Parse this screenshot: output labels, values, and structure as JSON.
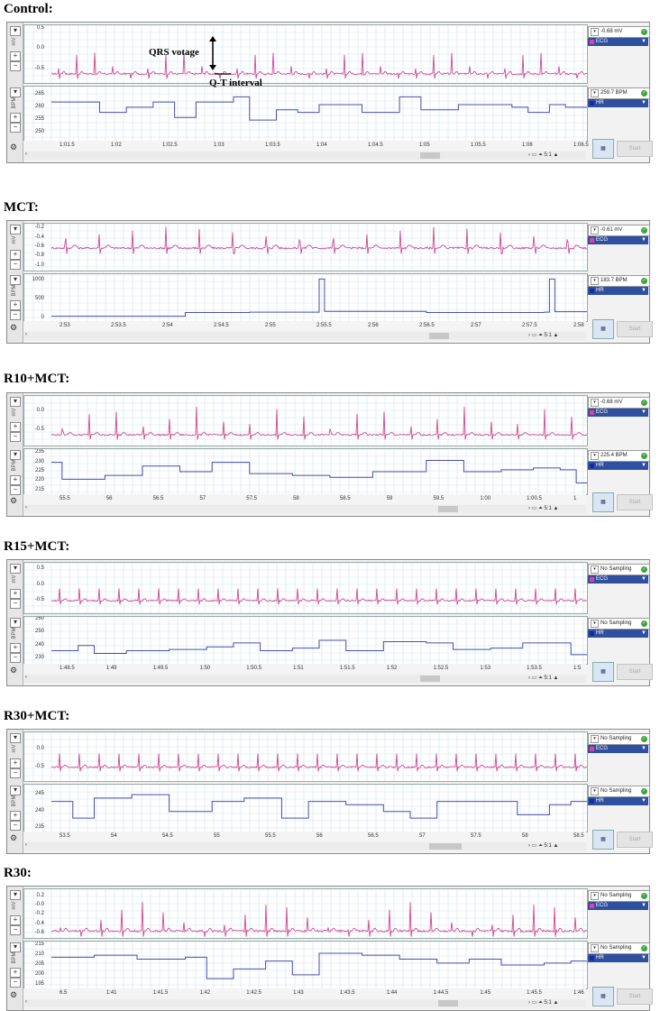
{
  "panels": [
    {
      "label": "Control:",
      "ecg": {
        "yticks": [
          "0.5",
          "0.0",
          "-0.5"
        ],
        "unit": "mV",
        "readout": "-0.68 mV",
        "channel": "ECG",
        "range": [
          -0.85,
          0.6
        ],
        "baseline": -0.62,
        "peak": 0.05,
        "beats": 30
      },
      "hr": {
        "yticks": [
          "265",
          "260",
          "255",
          "250"
        ],
        "unit": "BPM",
        "readout": "259.7 BPM",
        "channel": "HR",
        "range": [
          247,
          268
        ],
        "steps": [
          [
            0,
            262
          ],
          [
            0.09,
            258
          ],
          [
            0.14,
            260
          ],
          [
            0.19,
            262
          ],
          [
            0.23,
            256
          ],
          [
            0.27,
            262
          ],
          [
            0.34,
            264
          ],
          [
            0.37,
            255
          ],
          [
            0.42,
            259
          ],
          [
            0.46,
            258
          ],
          [
            0.5,
            261
          ],
          [
            0.55,
            261
          ],
          [
            0.58,
            258
          ],
          [
            0.65,
            264
          ],
          [
            0.69,
            259
          ],
          [
            0.76,
            261
          ],
          [
            0.86,
            260
          ],
          [
            0.89,
            258
          ],
          [
            0.93,
            261
          ],
          [
            0.96,
            260
          ]
        ]
      },
      "xticks": [
        "1:01.5",
        "1:02",
        "1:02.5",
        "1:03",
        "1:03.5",
        "1:04",
        "1:04.5",
        "1:05",
        "1:05.5",
        "1:06",
        "1:06.5"
      ],
      "zoom": "5:1",
      "button": "Start"
    },
    {
      "label": "MCT:",
      "ecg": {
        "yticks": [
          "-0.2",
          "-0.4",
          "-0.6",
          "-0.8",
          "-1.0"
        ],
        "unit": "mV",
        "readout": "-0.61 mV",
        "channel": "ECG",
        "range": [
          -1.1,
          -0.1
        ],
        "baseline": -0.62,
        "peak": -0.15,
        "beats": 16
      },
      "hr": {
        "yticks": [
          "1000",
          "500",
          "0"
        ],
        "unit": "BPM",
        "readout": "183.7 BPM",
        "channel": "HR",
        "range": [
          -80,
          1180
        ],
        "steps": [
          [
            0,
            50
          ],
          [
            0.25,
            150
          ],
          [
            0.37,
            160
          ],
          [
            0.5,
            1050
          ],
          [
            0.51,
            180
          ],
          [
            0.7,
            150
          ],
          [
            0.92,
            160
          ],
          [
            0.93,
            1050
          ],
          [
            0.94,
            170
          ],
          [
            1,
            170
          ]
        ]
      },
      "xticks": [
        "2:53",
        "2:53.5",
        "2:54",
        "2:54.5",
        "2:55",
        "2:55.5",
        "2:56",
        "2:56.5",
        "2:57",
        "2:57.5",
        "2:58"
      ],
      "zoom": "5:1",
      "button": "Start"
    },
    {
      "label": "R10+MCT:",
      "ecg": {
        "yticks": [
          "0.0",
          "-0.5"
        ],
        "unit": "mV",
        "readout": "-0.68 mV",
        "channel": "ECG",
        "range": [
          -0.9,
          0.4
        ],
        "baseline": -0.62,
        "peak": 0.15,
        "beats": 20
      },
      "hr": {
        "yticks": [
          "235",
          "230",
          "225",
          "220",
          "215"
        ],
        "unit": "BPM",
        "readout": "225.4 BPM",
        "channel": "HR",
        "range": [
          213,
          237
        ],
        "steps": [
          [
            0,
            230
          ],
          [
            0.02,
            221
          ],
          [
            0.1,
            223
          ],
          [
            0.17,
            228
          ],
          [
            0.24,
            225
          ],
          [
            0.3,
            230
          ],
          [
            0.37,
            224
          ],
          [
            0.45,
            223
          ],
          [
            0.52,
            222
          ],
          [
            0.6,
            225
          ],
          [
            0.7,
            231
          ],
          [
            0.77,
            225
          ],
          [
            0.84,
            226
          ],
          [
            0.9,
            227
          ],
          [
            0.95,
            226
          ],
          [
            0.98,
            219
          ]
        ]
      },
      "xticks": [
        "55.5",
        "56",
        "56.5",
        "57",
        "57.5",
        "58",
        "58.5",
        "59",
        "59.5",
        "1:00",
        "1:00.5",
        "1"
      ],
      "zoom": "5:1",
      "button": "Start"
    },
    {
      "label": "R15+MCT:",
      "ecg": {
        "yticks": [
          "0.5",
          "0.0",
          "-0.5"
        ],
        "unit": "mV",
        "readout": "No Sampling",
        "channel": "ECG",
        "range": [
          -0.9,
          0.7
        ],
        "baseline": -0.5,
        "peak": 0.35,
        "beats": 27
      },
      "hr": {
        "yticks": [
          "260",
          "250",
          "240",
          "230"
        ],
        "unit": "BPM",
        "readout": "No Sampling",
        "channel": "HR",
        "range": [
          226,
          262
        ],
        "steps": [
          [
            0,
            236
          ],
          [
            0.05,
            240
          ],
          [
            0.08,
            234
          ],
          [
            0.14,
            236
          ],
          [
            0.22,
            237
          ],
          [
            0.29,
            239
          ],
          [
            0.34,
            242
          ],
          [
            0.39,
            236
          ],
          [
            0.45,
            238
          ],
          [
            0.5,
            244
          ],
          [
            0.55,
            236
          ],
          [
            0.62,
            243
          ],
          [
            0.7,
            242
          ],
          [
            0.75,
            237
          ],
          [
            0.82,
            238
          ],
          [
            0.88,
            242
          ],
          [
            0.97,
            233
          ]
        ]
      },
      "xticks": [
        "1:48.5",
        "1:49",
        "1:49.5",
        "1:50",
        "1:50.5",
        "1:51",
        "1:51.5",
        "1:52",
        "1:52.5",
        "1:53",
        "1:53.5",
        "1:5"
      ],
      "zoom": "5:1",
      "button": "Start"
    },
    {
      "label": "R30+MCT:",
      "ecg": {
        "yticks": [
          "0.0",
          "-0.5"
        ],
        "unit": "mV",
        "readout": "No Sampling",
        "channel": "ECG",
        "range": [
          -0.9,
          0.5
        ],
        "baseline": -0.5,
        "peak": 0.35,
        "beats": 27
      },
      "hr": {
        "yticks": [
          "245",
          "240",
          "235"
        ],
        "unit": "BPM",
        "readout": "No Sampling",
        "channel": "HR",
        "range": [
          234,
          248
        ],
        "steps": [
          [
            0,
            243
          ],
          [
            0.04,
            238
          ],
          [
            0.08,
            244
          ],
          [
            0.15,
            245
          ],
          [
            0.22,
            240
          ],
          [
            0.3,
            243
          ],
          [
            0.36,
            244
          ],
          [
            0.43,
            238
          ],
          [
            0.48,
            243
          ],
          [
            0.55,
            242
          ],
          [
            0.62,
            240
          ],
          [
            0.67,
            238
          ],
          [
            0.72,
            243
          ],
          [
            0.82,
            243
          ],
          [
            0.87,
            239
          ],
          [
            0.93,
            242
          ],
          [
            0.97,
            243
          ]
        ]
      },
      "xticks": [
        "53.5",
        "54",
        "54.5",
        "55",
        "55.5",
        "56",
        "56.5",
        "57",
        "57.5",
        "58",
        "58.5"
      ],
      "zoom": "5:1",
      "button": "Start"
    },
    {
      "label": "R30:",
      "ecg": {
        "yticks": [
          "0.2",
          "-0.0",
          "-0.2",
          "-0.4",
          "-0.6"
        ],
        "unit": "mV",
        "readout": "No Sampling",
        "channel": "ECG",
        "range": [
          -0.7,
          0.35
        ],
        "baseline": -0.55,
        "peak": 0.1,
        "beats": 26
      },
      "hr": {
        "yticks": [
          "215",
          "210",
          "205",
          "200",
          "195"
        ],
        "unit": "BPM",
        "readout": "No Sampling",
        "channel": "HR",
        "range": [
          193,
          217
        ],
        "steps": [
          [
            0,
            209
          ],
          [
            0.08,
            210
          ],
          [
            0.16,
            208
          ],
          [
            0.25,
            209
          ],
          [
            0.29,
            198
          ],
          [
            0.34,
            203
          ],
          [
            0.4,
            207
          ],
          [
            0.45,
            200
          ],
          [
            0.5,
            211
          ],
          [
            0.58,
            210
          ],
          [
            0.65,
            208
          ],
          [
            0.72,
            206
          ],
          [
            0.78,
            208
          ],
          [
            0.84,
            205
          ],
          [
            0.92,
            206
          ],
          [
            0.97,
            207
          ]
        ]
      },
      "xticks": [
        "6.5",
        "1:41",
        "1:41.5",
        "1:42",
        "1:42.5",
        "1:43",
        "1:43.5",
        "1:44",
        "1:44.5",
        "1:45",
        "1:45.5",
        "1:46"
      ],
      "zoom": "5:1",
      "button": "Start"
    }
  ],
  "annotations": {
    "qrs": "QRS votage",
    "qt": "Q-T interval"
  },
  "colors": {
    "ecg": "#d0498f",
    "hr": "#4b4dab",
    "grid": "#cfe3f3",
    "channel_bar": "#2f4f9f"
  }
}
